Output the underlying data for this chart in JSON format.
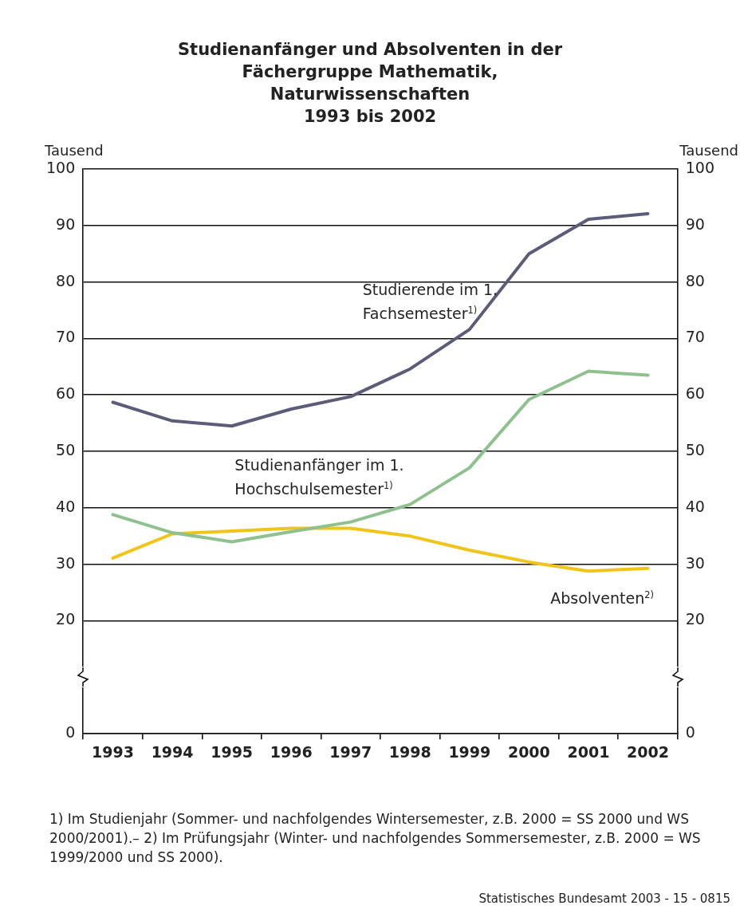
{
  "chart_data": {
    "type": "line",
    "title": "Studienanfänger und Absolventen in der Fächergruppe Mathematik, Naturwissenschaften",
    "subtitle": "1993 bis 2002",
    "ylabel": "Tausend",
    "y2label": "Tausend",
    "categories": [
      "1993",
      "1994",
      "1995",
      "1996",
      "1997",
      "1998",
      "1999",
      "2000",
      "2001",
      "2002"
    ],
    "series": [
      {
        "name": "Studierende im 1. Fachsemester$^{1)}$",
        "color": "#5c5c78",
        "values": [
          58.7,
          55.4,
          54.5,
          57.5,
          59.7,
          64.6,
          71.6,
          85.0,
          91.1,
          92.1
        ]
      },
      {
        "name": "Studienanfänger im 1. Hochschulsemester$^{1)}$",
        "color": "#8fc18f",
        "values": [
          38.8,
          35.6,
          34.0,
          35.8,
          37.5,
          40.6,
          47.1,
          59.2,
          64.2,
          63.5
        ]
      },
      {
        "name": "Absolventen$^{2)}$",
        "color": "#f0c419",
        "values": [
          31.1,
          35.4,
          35.9,
          36.4,
          36.4,
          35.0,
          32.5,
          30.4,
          28.8,
          29.3
        ]
      }
    ],
    "ylim": [
      0,
      100
    ],
    "yticks": [
      0,
      20,
      30,
      40,
      50,
      60,
      70,
      80,
      90,
      100
    ],
    "y2lim": [
      0,
      100
    ],
    "y2ticks": [
      0,
      20,
      30,
      40,
      50,
      60,
      70,
      80,
      90,
      100
    ],
    "grid": "y",
    "legend": false,
    "marker": "none",
    "line_style": "solid",
    "annotations": [
      "1) Im Studienjahr (Sommer- und nachfolgendes Wintersemester, z.B. 2000 = SS 2000 und WS 2000/2001).– 2) Im Prüfungsjahr (Winter- und nachfolgendes Sommersemester, z.B. 2000 = WS 1999/2000 und SS 2000).",
      "Statistisches Bundesamt 2003 - 15 - 0815"
    ]
  }
}
